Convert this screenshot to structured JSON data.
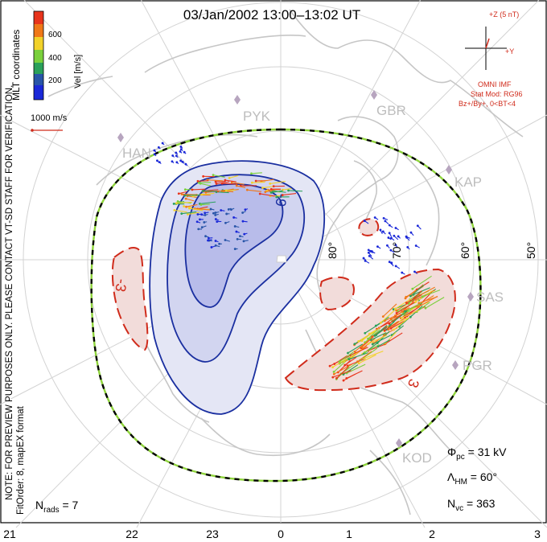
{
  "title": "03/Jan/2002  13:00–13:02 UT",
  "colorbar": {
    "ticks": [
      "600",
      "400",
      "200"
    ],
    "label": "Vel [m/s]",
    "colors": [
      "#e8341c",
      "#f07818",
      "#f2d22a",
      "#7ad03c",
      "#2aa05a",
      "#2855a8",
      "#1a28d8"
    ]
  },
  "coord_label": "MLT coordinates",
  "vector_scale_label": "1000 m/s",
  "imf": {
    "z_label": "+Z (5 nT)",
    "y_label": "+Y",
    "source": "OMNI IMF",
    "stat_mod": "Stat Mod: RG96",
    "condition": "Bz+/By+, 0<BT<4"
  },
  "left_note_1": "NOTE: FOR PREVIEW PURPOSES ONLY. PLEASE CONTACT VT-SD STAFF FOR VERIFICATION.",
  "left_note_2": "FitOrder: 8,  mapEX format",
  "stations": [
    "PYK",
    "GBR",
    "HAN",
    "KAP",
    "SAS",
    "PGR",
    "KOD"
  ],
  "latitudes": [
    "80°",
    "70°",
    "60°",
    "50°"
  ],
  "contour_labels": [
    "-9",
    "-3",
    "3"
  ],
  "stats": {
    "phi_pc": "Φpc = 31 kV",
    "lambda_hm": "ΛHM = 60°",
    "n_vc": "Nvc = 363",
    "n_rads": "Nrads = 7"
  },
  "stats_parts": {
    "phi_sym": "Φ",
    "phi_sub": "pc",
    "phi_val": " = 31 kV",
    "lam_sym": "Λ",
    "lam_sub": "HM",
    "lam_val": " = 60°",
    "nvc_sym": "N",
    "nvc_sub": "vc",
    "nvc_val": " = 363",
    "nrads_sym": "N",
    "nrads_sub": "rads",
    "nrads_val": " = 7"
  },
  "mlt_ticks": [
    "21",
    "22",
    "23",
    "0",
    "1",
    "2",
    "3"
  ],
  "colors": {
    "negative_fill": "#c9cdef",
    "negative_line": "#1a2fa0",
    "positive_fill": "#f1d5d2",
    "positive_line": "#d02b1b",
    "heppner_outer": "#8fd43c",
    "grid": "#d2d2d2",
    "coast": "#c8c8c8"
  }
}
